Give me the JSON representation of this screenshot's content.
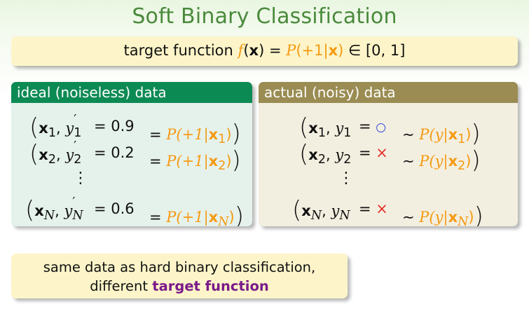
{
  "title": "Soft Binary Classification",
  "target": {
    "prefix": "target function ",
    "f": "f",
    "lp": "(",
    "x": "x",
    "rp": ")",
    "eq": " = ",
    "P": "P",
    "cond": "(+1|",
    "cond_x": "x",
    "cond_close": ")",
    "in": " ∈ [0, 1]"
  },
  "ideal": {
    "header": "ideal (noiseless) data",
    "rows": [
      {
        "x": "x",
        "xsub": "1",
        "y": "y",
        "ysub": "1",
        "prime": "′",
        "val": "= 0.9",
        "eq": "=",
        "P": "P(+1|",
        "px": "x",
        "psub": "1",
        "close": ")"
      },
      {
        "x": "x",
        "xsub": "2",
        "y": "y",
        "ysub": "2",
        "prime": "′",
        "val": "= 0.2",
        "eq": "=",
        "P": "P(+1|",
        "px": "x",
        "psub": "2",
        "close": ")"
      },
      {
        "x": "x",
        "xsub": "N",
        "y": "y",
        "ysub": "N",
        "prime": "′",
        "val": "= 0.6",
        "eq": "=",
        "P": "P(+1|",
        "px": "x",
        "psub": "N",
        "close": ")"
      }
    ]
  },
  "actual": {
    "header": "actual (noisy) data",
    "rows": [
      {
        "x": "x",
        "xsub": "1",
        "y": "y",
        "ysub": "1",
        "eq": "=",
        "sym": "○",
        "sim": "∼",
        "P": "P(y|",
        "px": "x",
        "psub": "1",
        "close": ")"
      },
      {
        "x": "x",
        "xsub": "2",
        "y": "y",
        "ysub": "2",
        "eq": "=",
        "sym": "×",
        "sim": "∼",
        "P": "P(y|",
        "px": "x",
        "psub": "2",
        "close": ")"
      },
      {
        "x": "x",
        "xsub": "N",
        "y": "y",
        "ysub": "N",
        "eq": "=",
        "sym": "×",
        "sim": "∼",
        "P": "P(y|",
        "px": "x",
        "psub": "N",
        "close": ")"
      }
    ]
  },
  "vdots": "⋮",
  "bottom": {
    "line1": "same data as hard binary classification,",
    "line2_prefix": "different ",
    "line2_bold": "target function"
  },
  "colors": {
    "title": "#4a8a3c",
    "ideal_header": "#0c8a54",
    "actual_header": "#9a8c52",
    "probability": "#f59a13",
    "circle": "#2b3fd6",
    "cross": "#e4322a",
    "emphasis": "#7a1b8a"
  }
}
